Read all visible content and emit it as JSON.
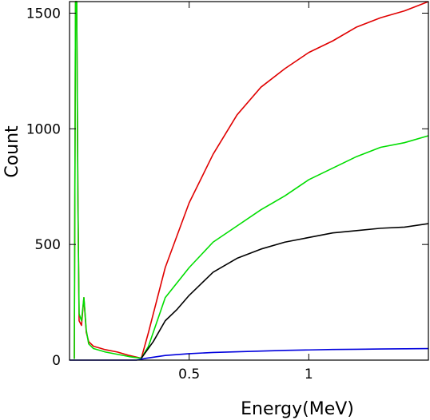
{
  "chart_data": {
    "type": "line",
    "title": "",
    "xlabel": "Energy(MeV)",
    "ylabel": "Count",
    "xlim": [
      0.0,
      1.5
    ],
    "ylim": [
      0,
      1550
    ],
    "x_ticks": [
      0.5,
      1.0
    ],
    "x_tick_labels": [
      "0.5",
      "1"
    ],
    "y_ticks": [
      0,
      500,
      1000,
      1500
    ],
    "y_tick_labels": [
      "0",
      "500",
      "1000",
      "1500"
    ],
    "grid": false,
    "legend": "none",
    "series": [
      {
        "color": "#e00000",
        "x": [
          0.02,
          0.025,
          0.03,
          0.035,
          0.04,
          0.05,
          0.06,
          0.07,
          0.08,
          0.1,
          0.15,
          0.2,
          0.25,
          0.3,
          0.33,
          0.4,
          0.5,
          0.6,
          0.7,
          0.8,
          0.9,
          1.0,
          1.1,
          1.2,
          1.3,
          1.4,
          1.5
        ],
        "y": [
          5,
          1550,
          1550,
          720,
          170,
          150,
          270,
          120,
          80,
          60,
          45,
          35,
          20,
          8,
          120,
          400,
          680,
          890,
          1060,
          1180,
          1260,
          1330,
          1380,
          1440,
          1480,
          1510,
          1550
        ]
      },
      {
        "color": "#00dd00",
        "x": [
          0.02,
          0.025,
          0.03,
          0.035,
          0.04,
          0.05,
          0.06,
          0.07,
          0.08,
          0.1,
          0.15,
          0.2,
          0.25,
          0.3,
          0.33,
          0.4,
          0.5,
          0.6,
          0.7,
          0.8,
          0.9,
          1.0,
          1.1,
          1.2,
          1.3,
          1.4,
          1.5
        ],
        "y": [
          5,
          1550,
          1550,
          680,
          200,
          170,
          270,
          130,
          70,
          50,
          35,
          25,
          15,
          8,
          60,
          270,
          400,
          510,
          580,
          650,
          710,
          780,
          830,
          880,
          920,
          940,
          970
        ]
      },
      {
        "color": "#000000",
        "x": [
          0.3,
          0.35,
          0.4,
          0.45,
          0.5,
          0.55,
          0.6,
          0.7,
          0.8,
          0.9,
          1.0,
          1.1,
          1.2,
          1.3,
          1.4,
          1.5
        ],
        "y": [
          8,
          80,
          170,
          220,
          280,
          330,
          380,
          440,
          480,
          510,
          530,
          550,
          560,
          570,
          575,
          590
        ]
      },
      {
        "color": "#0000dd",
        "x": [
          0.0,
          0.28,
          0.32,
          0.4,
          0.5,
          0.6,
          0.7,
          0.8,
          0.9,
          1.0,
          1.1,
          1.2,
          1.3,
          1.4,
          1.5
        ],
        "y": [
          0,
          0,
          8,
          20,
          28,
          33,
          36,
          39,
          42,
          44,
          46,
          47,
          48,
          49,
          50
        ]
      }
    ]
  }
}
